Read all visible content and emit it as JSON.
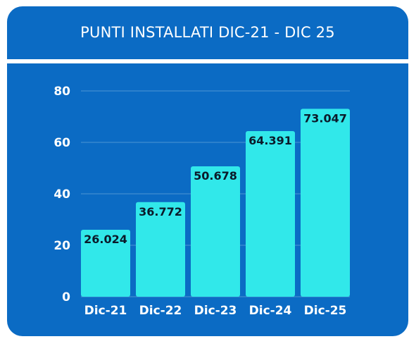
{
  "title": "PUNTI INSTALLATI DIC-21 - DIC 25",
  "colors": {
    "background": "#0b6bc4",
    "bar": "#31e8ea",
    "text": "#ffffff",
    "label": "#0b1a2a"
  },
  "chart_data": {
    "type": "bar",
    "title": "PUNTI INSTALLATI DIC-21 - DIC 25",
    "categories": [
      "Dic-21",
      "Dic-22",
      "Dic-23",
      "Dic-24",
      "Dic-25"
    ],
    "values": [
      26.024,
      36.772,
      50.678,
      64.391,
      73.047
    ],
    "data_labels": [
      "26.024",
      "36.772",
      "50.678",
      "64.391",
      "73.047"
    ],
    "yticks": [
      "0",
      "20",
      "40",
      "60",
      "80"
    ],
    "ylim": [
      0,
      80
    ],
    "xlabel": "",
    "ylabel": "",
    "grid": true,
    "legend": "none"
  }
}
